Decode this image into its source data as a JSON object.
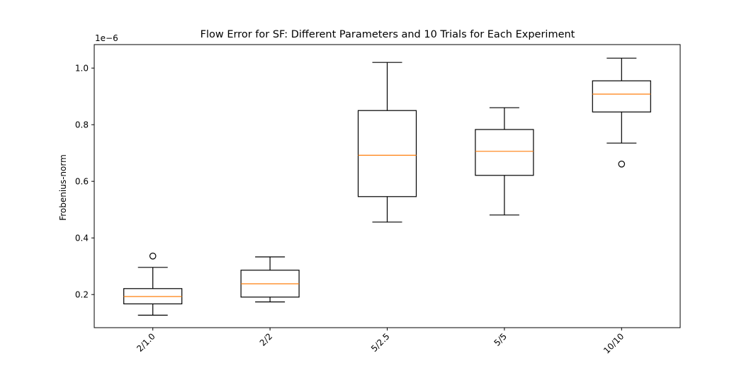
{
  "chart_data": {
    "type": "boxplot",
    "title": "Flow Error for SF: Different Parameters and 10 Trials for Each Experiment",
    "xlabel": "",
    "ylabel": "Frobenius-norm",
    "y_offset_text": "1e−6",
    "y_scale_factor": 1e-06,
    "ylim": [
      0.083,
      1.083
    ],
    "yticks": [
      0.2,
      0.4,
      0.6,
      0.8,
      1.0
    ],
    "ytick_labels": [
      "0.2",
      "0.4",
      "0.6",
      "0.8",
      "1.0"
    ],
    "grid": false,
    "categories": [
      "2/1.0",
      "2/2",
      "5/2.5",
      "5/5",
      "10/10"
    ],
    "boxes": [
      {
        "whisker_low": 0.127,
        "q1": 0.167,
        "median": 0.193,
        "q3": 0.221,
        "whisker_high": 0.296,
        "outliers": [
          0.336
        ]
      },
      {
        "whisker_low": 0.174,
        "q1": 0.191,
        "median": 0.238,
        "q3": 0.286,
        "whisker_high": 0.333,
        "outliers": []
      },
      {
        "whisker_low": 0.456,
        "q1": 0.546,
        "median": 0.692,
        "q3": 0.85,
        "whisker_high": 1.02,
        "outliers": []
      },
      {
        "whisker_low": 0.481,
        "q1": 0.621,
        "median": 0.706,
        "q3": 0.783,
        "whisker_high": 0.86,
        "outliers": []
      },
      {
        "whisker_low": 0.735,
        "q1": 0.845,
        "median": 0.908,
        "q3": 0.955,
        "whisker_high": 1.035,
        "outliers": [
          0.661
        ]
      }
    ],
    "colors": {
      "box": "#000000",
      "median": "#ff7f0e",
      "outlier": "#000000"
    }
  }
}
